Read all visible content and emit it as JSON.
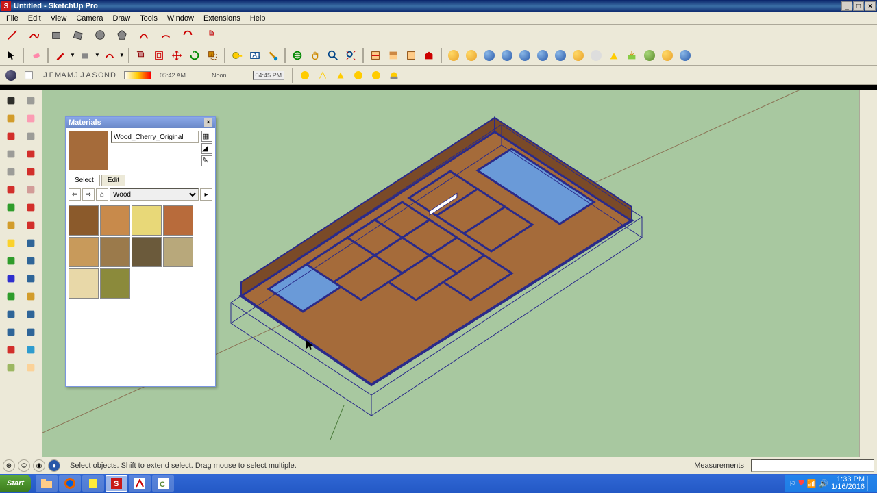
{
  "window": {
    "title": "Untitled - SketchUp Pro",
    "icon_letter": "S"
  },
  "menus": [
    "File",
    "Edit",
    "View",
    "Camera",
    "Draw",
    "Tools",
    "Window",
    "Extensions",
    "Help"
  ],
  "timebar": {
    "months": [
      "J",
      "F",
      "M",
      "A",
      "M",
      "J",
      "J",
      "A",
      "S",
      "O",
      "N",
      "D"
    ],
    "time_left": "05:42 AM",
    "time_mid": "Noon",
    "time_right": "04:45 PM"
  },
  "materials_panel": {
    "title": "Materials",
    "material_name": "Wood_Cherry_Original",
    "preview_color": "#a56b3a",
    "tabs": {
      "select": "Select",
      "edit": "Edit"
    },
    "category": "Wood",
    "swatches": [
      "#8b5a2b",
      "#c88a4b",
      "#e8d878",
      "#b86b3b",
      "#c89a5b",
      "#9b7a4b",
      "#6b5a3b",
      "#b8a87b",
      "#e8d8a8",
      "#8b8a3b"
    ]
  },
  "status": {
    "message": "Select objects. Shift to extend select. Drag mouse to select multiple.",
    "measurements_label": "Measurements"
  },
  "taskbar": {
    "start": "Start",
    "time": "1:33 PM",
    "date": "1/16/2016"
  },
  "viewport": {
    "bg": "#a8c8a0",
    "door_wood": "#a56b3a",
    "door_frame": "#2a2a8a",
    "door_glass": "#6a9ad8"
  }
}
